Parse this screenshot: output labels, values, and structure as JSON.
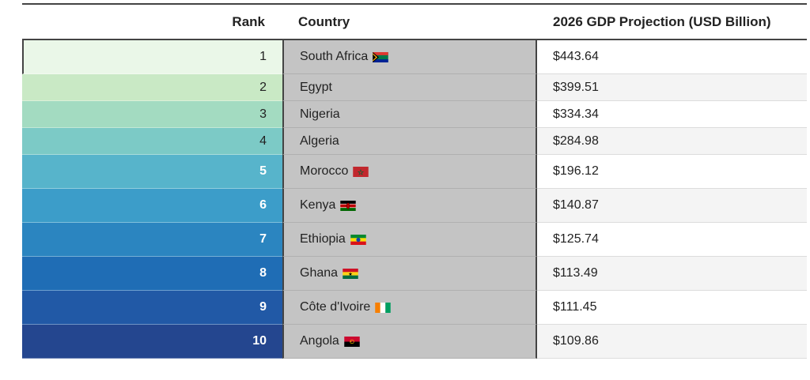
{
  "table": {
    "headers": {
      "rank": "Rank",
      "country": "Country",
      "gdp": "2026 GDP Projection (USD Billion)"
    },
    "rows": [
      {
        "rank": "1",
        "country": "South Africa",
        "gdp": "$443.64",
        "flag": "south-africa-flag",
        "color": "#eaf7e8",
        "text_color": "#222222"
      },
      {
        "rank": "2",
        "country": "Egypt",
        "gdp": "$399.51",
        "flag": "",
        "color": "#c9e9c5",
        "text_color": "#222222"
      },
      {
        "rank": "3",
        "country": "Nigeria",
        "gdp": "$334.34",
        "flag": "",
        "color": "#a3dbc1",
        "text_color": "#222222"
      },
      {
        "rank": "4",
        "country": "Algeria",
        "gdp": "$284.98",
        "flag": "",
        "color": "#7ccac6",
        "text_color": "#222222"
      },
      {
        "rank": "5",
        "country": "Morocco",
        "gdp": "$196.12",
        "flag": "morocco-flag",
        "color": "#57b4cb",
        "text_color": "#ffffff"
      },
      {
        "rank": "6",
        "country": "Kenya",
        "gdp": "$140.87",
        "flag": "kenya-flag",
        "color": "#3c9dc9",
        "text_color": "#ffffff"
      },
      {
        "rank": "7",
        "country": "Ethiopia",
        "gdp": "$125.74",
        "flag": "ethiopia-flag",
        "color": "#2b85c0",
        "text_color": "#ffffff"
      },
      {
        "rank": "8",
        "country": "Ghana",
        "gdp": "$113.49",
        "flag": "ghana-flag",
        "color": "#1f6db5",
        "text_color": "#ffffff"
      },
      {
        "rank": "9",
        "country": "Côte d'Ivoire",
        "gdp": "$111.45",
        "flag": "cote-divoire-flag",
        "color": "#2159a6",
        "text_color": "#ffffff"
      },
      {
        "rank": "10",
        "country": "Angola",
        "gdp": "$109.86",
        "flag": "angola-flag",
        "color": "#24468f",
        "text_color": "#ffffff"
      }
    ]
  }
}
